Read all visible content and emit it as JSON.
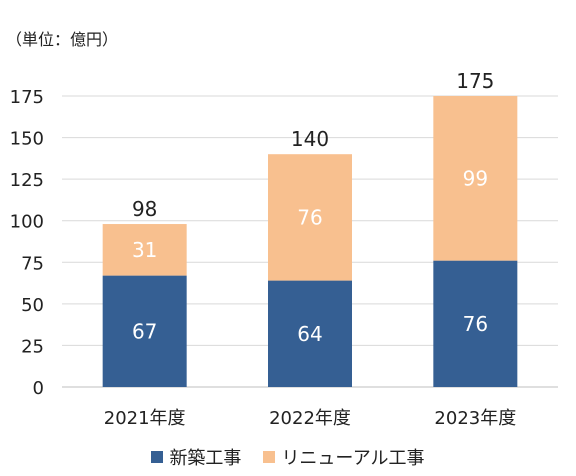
{
  "chart_data": {
    "type": "bar",
    "stacked": true,
    "unit_label": "（単位：億円）",
    "categories": [
      "2021年度",
      "2022年度",
      "2023年度"
    ],
    "series": [
      {
        "name": "新築工事",
        "values": [
          67,
          64,
          76
        ],
        "color": "#355f93",
        "label_color": "#ffffff"
      },
      {
        "name": "リニューアル工事",
        "values": [
          31,
          76,
          99
        ],
        "color": "#f8c08f",
        "label_color": "#ffffff"
      }
    ],
    "totals": [
      98,
      140,
      175
    ],
    "ylim": [
      0,
      175
    ],
    "yticks": [
      0,
      25,
      50,
      75,
      100,
      125,
      150,
      175
    ],
    "grid": true,
    "legend_position": "bottom"
  }
}
